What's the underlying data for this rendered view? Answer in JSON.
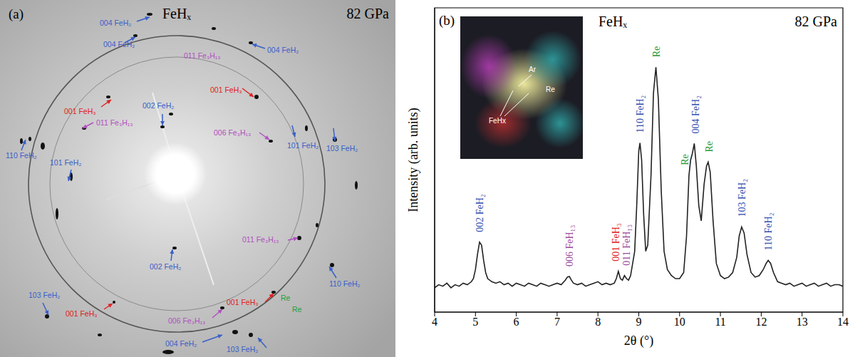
{
  "panel_a": {
    "panel_label": "(a)",
    "title": "FeHₓ",
    "subtitle": "82 GPa",
    "annotations": [
      {
        "text": "004 FeH₂",
        "color": "#3a5fc8"
      },
      {
        "text": "004 FeH₂",
        "color": "#3a5fc8"
      },
      {
        "text": "004 FeH₂",
        "color": "#3a5fc8"
      },
      {
        "text": "011 Fe₃H₁₃",
        "color": "#b050c0"
      },
      {
        "text": "001 FeH₃",
        "color": "#e02020"
      },
      {
        "text": "001 FeH₃",
        "color": "#e02020"
      },
      {
        "text": "011 Fe₃H₁₃",
        "color": "#b050c0"
      },
      {
        "text": "002 FeH₂",
        "color": "#3a5fc8"
      },
      {
        "text": "006 Fe₃H₁₃",
        "color": "#b050c0"
      },
      {
        "text": "101 FeH₂",
        "color": "#3a5fc8"
      },
      {
        "text": "103 FeH₂",
        "color": "#3a5fc8"
      },
      {
        "text": "110 FeH₂",
        "color": "#3a5fc8"
      },
      {
        "text": "101 FeH₂",
        "color": "#3a5fc8"
      },
      {
        "text": "103 FeH₂",
        "color": "#3a5fc8"
      },
      {
        "text": "011 Fe₃H₁₃",
        "color": "#b050c0"
      },
      {
        "text": "110 FeH₂",
        "color": "#3a5fc8"
      },
      {
        "text": "002 FeH₂",
        "color": "#3a5fc8"
      },
      {
        "text": "001 FeH₃",
        "color": "#e02020"
      },
      {
        "text": "006 Fe₃H₁₃",
        "color": "#b050c0"
      },
      {
        "text": "001 FeH₃",
        "color": "#e02020"
      },
      {
        "text": "Re",
        "color": "#20a040"
      },
      {
        "text": "Re",
        "color": "#20a040"
      },
      {
        "text": "004 FeH₂",
        "color": "#3a5fc8"
      },
      {
        "text": "103 FeH₂",
        "color": "#3a5fc8"
      }
    ]
  },
  "chart_data": {
    "type": "line",
    "panel_label": "(b)",
    "title": "FeHₓ",
    "subtitle": "82 GPa",
    "x_label": "2θ (°)",
    "y_label": "Intensity (arb. units)",
    "color": "#222222",
    "x": [
      4.0,
      4.1,
      4.2,
      4.3,
      4.4,
      4.5,
      4.6,
      4.7,
      4.8,
      4.9,
      4.95,
      5.0,
      5.05,
      5.1,
      5.15,
      5.2,
      5.25,
      5.3,
      5.4,
      5.5,
      5.6,
      5.7,
      5.8,
      5.9,
      6.0,
      6.1,
      6.2,
      6.3,
      6.4,
      6.5,
      6.6,
      6.7,
      6.8,
      6.9,
      7.0,
      7.1,
      7.2,
      7.25,
      7.3,
      7.35,
      7.4,
      7.5,
      7.6,
      7.7,
      7.8,
      7.9,
      8.0,
      8.1,
      8.2,
      8.3,
      8.4,
      8.45,
      8.5,
      8.55,
      8.6,
      8.65,
      8.7,
      8.75,
      8.8,
      8.9,
      8.95,
      9.0,
      9.03,
      9.07,
      9.12,
      9.17,
      9.22,
      9.3,
      9.36,
      9.42,
      9.48,
      9.55,
      9.62,
      9.7,
      9.8,
      9.9,
      10.0,
      10.1,
      10.17,
      10.23,
      10.27,
      10.31,
      10.36,
      10.41,
      10.47,
      10.53,
      10.6,
      10.66,
      10.7,
      10.75,
      10.82,
      10.9,
      11.0,
      11.1,
      11.2,
      11.3,
      11.4,
      11.46,
      11.52,
      11.58,
      11.65,
      11.75,
      11.85,
      11.95,
      12.05,
      12.12,
      12.17,
      12.23,
      12.3,
      12.4,
      12.5,
      12.6,
      12.7,
      12.8,
      12.9,
      13.0,
      13.1,
      13.2,
      13.3,
      13.4,
      13.5,
      13.6,
      13.7,
      13.8,
      13.9,
      14.0
    ],
    "values": [
      8,
      9,
      8.5,
      9.5,
      8,
      9,
      8.5,
      9.5,
      9,
      10,
      11,
      14,
      19,
      23,
      22,
      17,
      13,
      11,
      10,
      9.5,
      10,
      9,
      9.5,
      8.5,
      9.5,
      9,
      8.5,
      9.5,
      9,
      8.5,
      9.5,
      9,
      8.5,
      9,
      9.5,
      9,
      10.5,
      11.5,
      11.7,
      10.5,
      9.5,
      9,
      9.5,
      8.5,
      9,
      9.5,
      10,
      9,
      9.5,
      9,
      9.5,
      11,
      13.4,
      11,
      10.5,
      12,
      11,
      10.5,
      12,
      20,
      35,
      53,
      55.6,
      50,
      32,
      20,
      22,
      45,
      72,
      80.5,
      70,
      40,
      20,
      14,
      12,
      11,
      11,
      13,
      25,
      45,
      50,
      52,
      55.4,
      48,
      35,
      30,
      42,
      48,
      49.3,
      46,
      30,
      16,
      12,
      11,
      11.5,
      13,
      18,
      25,
      28,
      26,
      19,
      13,
      11.5,
      12,
      14,
      16,
      17,
      16,
      13,
      10,
      9.5,
      9,
      9.5,
      8.5,
      9,
      9.5,
      8.5,
      9,
      9.5,
      8.5,
      9,
      9.5,
      8.5,
      9,
      9,
      8.5
    ],
    "xlim": [
      4,
      14
    ],
    "xticks": [
      4,
      5,
      6,
      7,
      8,
      9,
      10,
      11,
      12,
      13,
      14
    ],
    "ylim": [
      0,
      100
    ],
    "tick_labels": "x",
    "annotations": [
      {
        "text": "002 FeH₂",
        "x": 5.1,
        "color": "#2f4fb0"
      },
      {
        "text": "006 FeH₁₃",
        "x": 7.3,
        "color": "#9b4a9b"
      },
      {
        "text": "001 FeH₃",
        "x": 8.44,
        "color": "#e0201c"
      },
      {
        "text": "011 FeH₁₃",
        "x": 8.7,
        "color": "#9b4a9b"
      },
      {
        "text": "110 FeH₂",
        "x": 9.03,
        "color": "#2f4fb0"
      },
      {
        "text": "Re",
        "x": 9.42,
        "color": "#2e9a3a"
      },
      {
        "text": "Re",
        "x": 10.12,
        "color": "#2e9a3a"
      },
      {
        "text": "004 FeH₂",
        "x": 10.38,
        "color": "#2f4fb0"
      },
      {
        "text": "Re",
        "x": 10.72,
        "color": "#2e9a3a"
      },
      {
        "text": "103 FeH₂",
        "x": 11.52,
        "color": "#2f4fb0"
      },
      {
        "text": "110 FeH₂",
        "x": 12.17,
        "color": "#2f4fb0"
      }
    ],
    "inset_labels": [
      "Ar",
      "Re",
      "FeHx"
    ]
  }
}
